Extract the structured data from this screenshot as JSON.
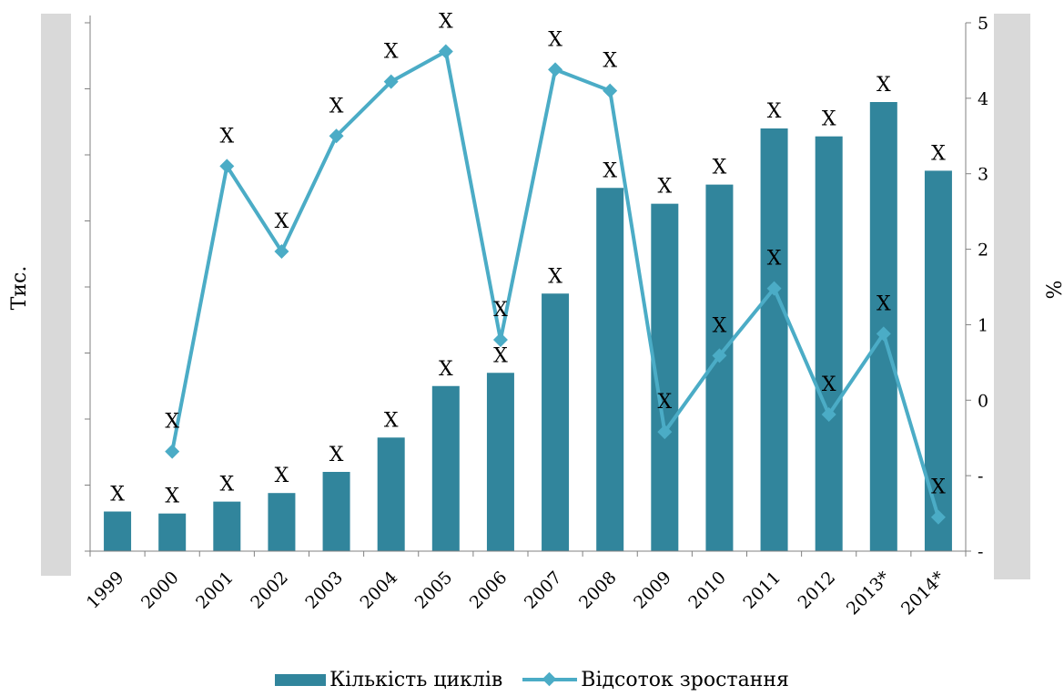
{
  "chart_data": {
    "type": "bar",
    "categories": [
      "1999",
      "2000",
      "2001",
      "2002",
      "2003",
      "2004",
      "2005",
      "2006",
      "2007",
      "2008",
      "2009",
      "2010",
      "2011",
      "2012",
      "2013*",
      "2014*"
    ],
    "series": [
      {
        "name": "Кількість циклів",
        "type": "bar",
        "axis": "left",
        "color": "#31859c",
        "values": [
          0.6,
          0.57,
          0.75,
          0.88,
          1.2,
          1.72,
          2.5,
          2.7,
          3.9,
          5.5,
          5.26,
          5.55,
          6.4,
          6.28,
          6.8,
          5.76
        ],
        "labels": [
          "X",
          "X",
          "X",
          "X",
          "X",
          "X",
          "X",
          "X",
          "X",
          "X",
          "X",
          "X",
          "X",
          "X",
          "X",
          "X"
        ]
      },
      {
        "name": "Відсоток зростання",
        "type": "line",
        "axis": "right",
        "color": "#4bacc6",
        "marker": "diamond",
        "values": [
          null,
          -0.68,
          3.1,
          1.97,
          3.5,
          4.22,
          4.62,
          0.8,
          4.38,
          4.1,
          -0.42,
          0.59,
          1.48,
          -0.19,
          0.88,
          -1.55
        ],
        "labels": [
          "",
          "X",
          "X",
          "X",
          "X",
          "X",
          "X",
          "X",
          "X",
          "X",
          "X",
          "X",
          "X",
          "X",
          "X",
          "X"
        ]
      }
    ],
    "ylabel": "Тис.",
    "y2label": "%",
    "ylim": [
      0,
      8
    ],
    "y2lim": [
      -2,
      5
    ],
    "y2_tick_labels": [
      "-",
      "-",
      "0",
      "1",
      "2",
      "3",
      "4",
      "5"
    ],
    "grid": false,
    "legend_position": "bottom"
  }
}
